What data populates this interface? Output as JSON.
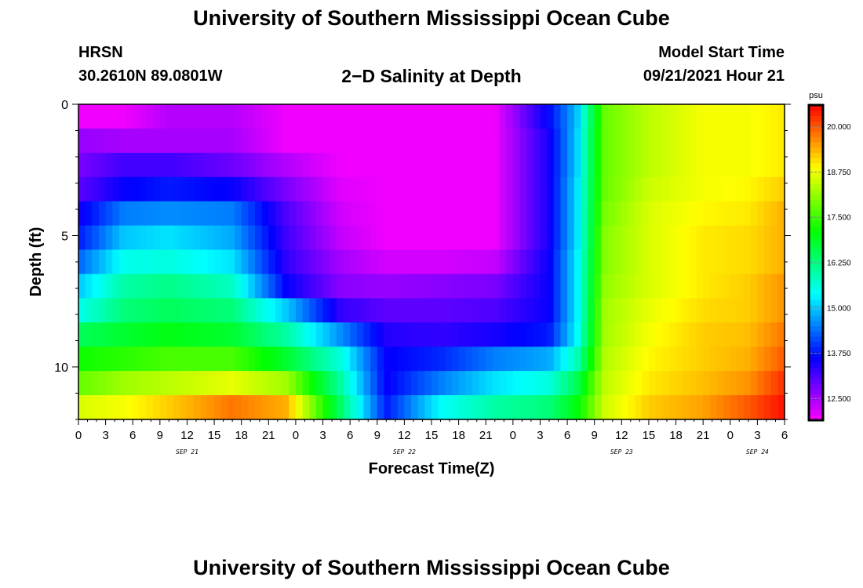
{
  "header": {
    "title": "University of Southern Mississippi Ocean Cube",
    "station": "HRSN",
    "coordinates": "30.2610N  89.0801W",
    "plot_title": "2−D Salinity at Depth",
    "model_start_label": "Model Start Time",
    "model_start_value": "09/21/2021 Hour 21"
  },
  "footer": {
    "title": "University of Southern Mississippi Ocean Cube"
  },
  "chart_data": {
    "type": "heatmap",
    "title": "2−D Salinity at Depth",
    "xlabel": "Forecast Time(Z)",
    "ylabel": "Depth (ft)",
    "colorbar_unit": "psu",
    "x_hour_range": [
      0,
      78
    ],
    "x_tick_labels": [
      "0",
      "3",
      "6",
      "9",
      "12",
      "15",
      "18",
      "21",
      "0",
      "3",
      "6",
      "9",
      "12",
      "15",
      "18",
      "21",
      "0",
      "3",
      "6",
      "9",
      "12",
      "15",
      "18",
      "21",
      "0",
      "3",
      "6"
    ],
    "x_day_labels": [
      {
        "label": "SEP 21",
        "hour": 12
      },
      {
        "label": "SEP 22",
        "hour": 36
      },
      {
        "label": "SEP 23",
        "hour": 60
      },
      {
        "label": "SEP 24",
        "hour": 75
      }
    ],
    "y_range": [
      0,
      12
    ],
    "y_tick_labels": [
      "0",
      "5",
      "10"
    ],
    "y_ticks": [
      0,
      5,
      10
    ],
    "color_range": [
      11.9,
      20.6
    ],
    "colorbar_ticks": [
      "12.500",
      "13.750",
      "15.000",
      "16.250",
      "17.500",
      "18.750",
      "20.000"
    ],
    "colorbar_tick_values": [
      12.5,
      13.75,
      15.0,
      16.25,
      17.5,
      18.75,
      20.0
    ],
    "layers_depth_ft": [
      0,
      1,
      2,
      3,
      4,
      5,
      6,
      7,
      8,
      9,
      10,
      11,
      12
    ],
    "salinity_psu": [
      [
        12.0,
        12.0,
        12.4,
        12.4,
        12.0,
        12.0,
        12.0,
        12.0,
        12.0,
        13.7,
        14.9,
        17.8,
        18.4,
        18.8,
        18.8,
        19.0
      ],
      [
        12.6,
        12.5,
        12.5,
        12.5,
        12.0,
        12.0,
        12.0,
        12.0,
        12.0,
        13.5,
        15.0,
        17.8,
        18.4,
        18.8,
        18.8,
        19.0
      ],
      [
        12.8,
        13.2,
        13.2,
        12.9,
        12.4,
        12.0,
        12.0,
        12.0,
        12.0,
        13.5,
        15.0,
        17.8,
        18.4,
        18.8,
        18.8,
        19.0
      ],
      [
        13.0,
        13.6,
        13.8,
        13.6,
        12.8,
        12.1,
        12.0,
        12.0,
        12.0,
        13.5,
        15.1,
        17.8,
        18.5,
        18.8,
        18.9,
        19.2
      ],
      [
        13.5,
        14.5,
        14.6,
        14.5,
        13.1,
        12.2,
        12.0,
        12.0,
        12.0,
        13.5,
        15.1,
        17.9,
        18.6,
        18.9,
        19.0,
        19.4
      ],
      [
        13.8,
        15.0,
        15.2,
        14.8,
        13.2,
        12.3,
        12.0,
        12.0,
        12.0,
        13.5,
        15.1,
        18.0,
        18.6,
        19.0,
        19.1,
        19.4
      ],
      [
        14.3,
        15.5,
        15.6,
        15.2,
        13.3,
        12.5,
        12.2,
        12.2,
        12.3,
        13.6,
        15.2,
        18.0,
        18.6,
        19.0,
        19.1,
        19.4
      ],
      [
        15.0,
        16.0,
        16.2,
        15.8,
        13.6,
        12.7,
        12.6,
        12.7,
        12.8,
        13.6,
        15.2,
        18.1,
        18.6,
        19.0,
        19.2,
        19.6
      ],
      [
        15.5,
        16.3,
        16.5,
        16.3,
        15.0,
        13.3,
        13.0,
        13.0,
        13.1,
        13.6,
        15.2,
        18.2,
        18.7,
        19.1,
        19.2,
        19.6
      ],
      [
        16.5,
        16.8,
        17.0,
        16.8,
        16.0,
        14.6,
        13.4,
        13.3,
        13.5,
        13.8,
        15.3,
        18.2,
        18.8,
        19.2,
        19.3,
        19.8
      ],
      [
        17.2,
        17.4,
        17.6,
        17.6,
        16.8,
        15.6,
        13.6,
        13.9,
        14.5,
        14.8,
        15.8,
        18.3,
        18.9,
        19.2,
        19.4,
        20.0
      ],
      [
        17.8,
        18.2,
        18.4,
        18.7,
        18.2,
        16.0,
        13.6,
        14.5,
        15.2,
        15.6,
        16.5,
        18.4,
        19.0,
        19.3,
        19.6,
        20.3
      ],
      [
        18.6,
        18.8,
        19.2,
        19.8,
        19.4,
        16.4,
        13.8,
        15.4,
        16.0,
        16.3,
        17.0,
        18.5,
        19.2,
        19.5,
        20.0,
        20.5
      ]
    ],
    "salinity_time_hours": [
      0,
      5,
      10,
      17,
      23,
      29,
      34,
      40,
      46,
      52,
      55,
      58,
      63,
      69,
      74,
      78
    ]
  }
}
